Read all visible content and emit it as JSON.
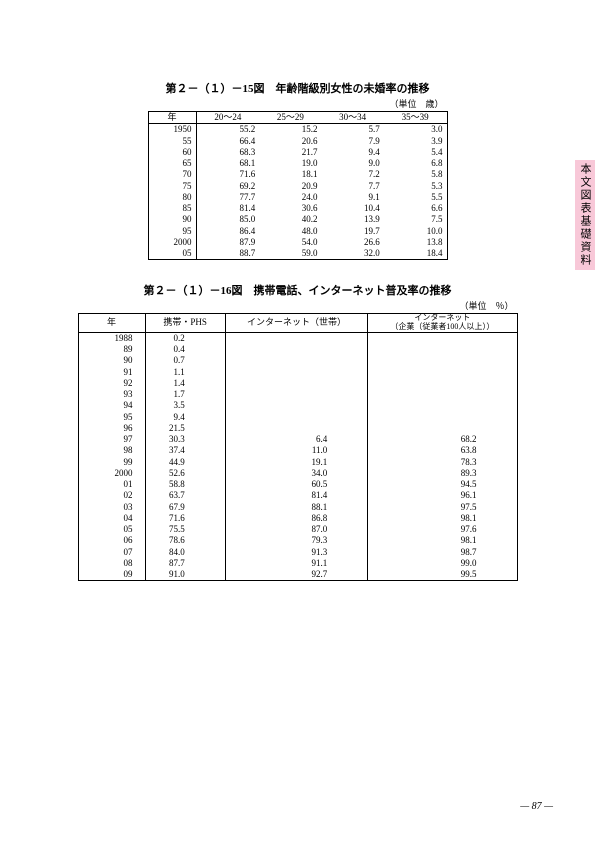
{
  "side_tab": "本文図表基礎資料",
  "page_number": "87",
  "table1": {
    "title": "第２－（１）－15図　年齢階級別女性の未婚率の推移",
    "unit": "（単位　歳）",
    "columns": [
      "年",
      "20～24",
      "25～29",
      "30～34",
      "35～39"
    ],
    "rows": [
      [
        "1950",
        "55.2",
        "15.2",
        "5.7",
        "3.0"
      ],
      [
        "55",
        "66.4",
        "20.6",
        "7.9",
        "3.9"
      ],
      [
        "60",
        "68.3",
        "21.7",
        "9.4",
        "5.4"
      ],
      [
        "65",
        "68.1",
        "19.0",
        "9.0",
        "6.8"
      ],
      [
        "70",
        "71.6",
        "18.1",
        "7.2",
        "5.8"
      ],
      [
        "75",
        "69.2",
        "20.9",
        "7.7",
        "5.3"
      ],
      [
        "80",
        "77.7",
        "24.0",
        "9.1",
        "5.5"
      ],
      [
        "85",
        "81.4",
        "30.6",
        "10.4",
        "6.6"
      ],
      [
        "90",
        "85.0",
        "40.2",
        "13.9",
        "7.5"
      ],
      [
        "95",
        "86.4",
        "48.0",
        "19.7",
        "10.0"
      ],
      [
        "2000",
        "87.9",
        "54.0",
        "26.6",
        "13.8"
      ],
      [
        "05",
        "88.7",
        "59.0",
        "32.0",
        "18.4"
      ]
    ]
  },
  "table2": {
    "title": "第２－（１）－16図　携帯電話、インターネット普及率の推移",
    "unit": "（単位　％）",
    "columns": [
      "年",
      "携帯・PHS",
      "インターネット（世帯）",
      "インターネット\n（企業（従業者100人以上））"
    ],
    "rows": [
      [
        "1988",
        "0.2",
        "",
        ""
      ],
      [
        "89",
        "0.4",
        "",
        ""
      ],
      [
        "90",
        "0.7",
        "",
        ""
      ],
      [
        "91",
        "1.1",
        "",
        ""
      ],
      [
        "92",
        "1.4",
        "",
        ""
      ],
      [
        "93",
        "1.7",
        "",
        ""
      ],
      [
        "94",
        "3.5",
        "",
        ""
      ],
      [
        "95",
        "9.4",
        "",
        ""
      ],
      [
        "96",
        "21.5",
        "",
        ""
      ],
      [
        "97",
        "30.3",
        "6.4",
        "68.2"
      ],
      [
        "98",
        "37.4",
        "11.0",
        "63.8"
      ],
      [
        "99",
        "44.9",
        "19.1",
        "78.3"
      ],
      [
        "2000",
        "52.6",
        "34.0",
        "89.3"
      ],
      [
        "01",
        "58.8",
        "60.5",
        "94.5"
      ],
      [
        "02",
        "63.7",
        "81.4",
        "96.1"
      ],
      [
        "03",
        "67.9",
        "88.1",
        "97.5"
      ],
      [
        "04",
        "71.6",
        "86.8",
        "98.1"
      ],
      [
        "05",
        "75.5",
        "87.0",
        "97.6"
      ],
      [
        "06",
        "78.6",
        "79.3",
        "98.1"
      ],
      [
        "07",
        "84.0",
        "91.3",
        "98.7"
      ],
      [
        "08",
        "87.7",
        "91.1",
        "99.0"
      ],
      [
        "09",
        "91.0",
        "92.7",
        "99.5"
      ]
    ]
  }
}
